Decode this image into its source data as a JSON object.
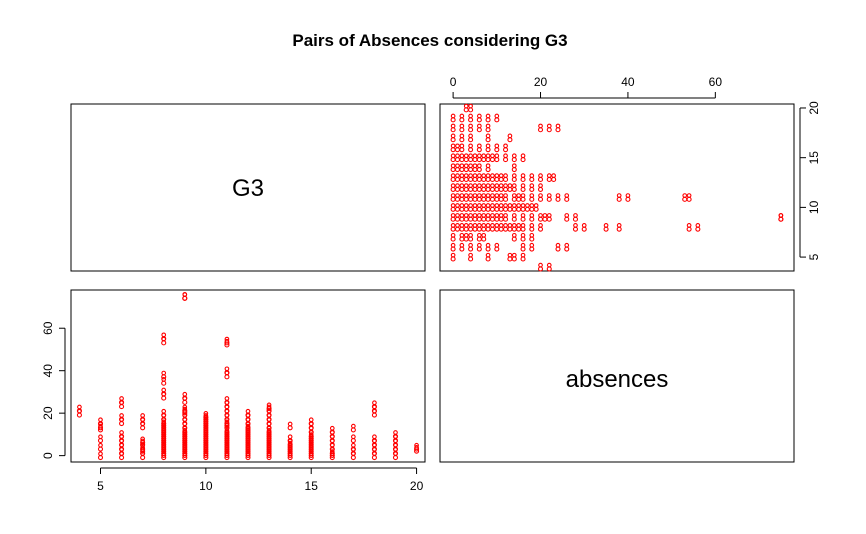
{
  "chart_data": {
    "type": "scatter",
    "title": "Pairs of Absences considering G3",
    "variables": [
      "G3",
      "absences"
    ],
    "point_color": "#ff0000",
    "point_symbol": "8",
    "axes": {
      "G3": {
        "range": [
          3.6,
          20.4
        ],
        "ticks": [
          5,
          10,
          15,
          20
        ]
      },
      "absences": {
        "range": [
          -3,
          78
        ],
        "ticks": [
          0,
          20,
          40,
          60
        ]
      }
    },
    "points": [
      [
        4,
        20
      ],
      [
        4,
        22
      ],
      [
        5,
        0
      ],
      [
        5,
        4
      ],
      [
        5,
        8
      ],
      [
        5,
        13
      ],
      [
        5,
        14
      ],
      [
        5,
        16
      ],
      [
        6,
        0
      ],
      [
        6,
        2
      ],
      [
        6,
        4
      ],
      [
        6,
        6
      ],
      [
        6,
        8
      ],
      [
        6,
        10
      ],
      [
        6,
        16
      ],
      [
        6,
        18
      ],
      [
        6,
        24
      ],
      [
        6,
        26
      ],
      [
        7,
        0
      ],
      [
        7,
        2
      ],
      [
        7,
        3
      ],
      [
        7,
        4
      ],
      [
        7,
        6
      ],
      [
        7,
        7
      ],
      [
        7,
        14
      ],
      [
        7,
        16
      ],
      [
        7,
        18
      ],
      [
        8,
        0
      ],
      [
        8,
        1
      ],
      [
        8,
        2
      ],
      [
        8,
        3
      ],
      [
        8,
        4
      ],
      [
        8,
        5
      ],
      [
        8,
        6
      ],
      [
        8,
        7
      ],
      [
        8,
        8
      ],
      [
        8,
        9
      ],
      [
        8,
        10
      ],
      [
        8,
        11
      ],
      [
        8,
        12
      ],
      [
        8,
        13
      ],
      [
        8,
        14
      ],
      [
        8,
        15
      ],
      [
        8,
        16
      ],
      [
        8,
        18
      ],
      [
        8,
        20
      ],
      [
        8,
        28
      ],
      [
        8,
        30
      ],
      [
        8,
        35
      ],
      [
        8,
        38
      ],
      [
        8,
        54
      ],
      [
        8,
        56
      ],
      [
        9,
        0
      ],
      [
        9,
        1
      ],
      [
        9,
        2
      ],
      [
        9,
        3
      ],
      [
        9,
        4
      ],
      [
        9,
        5
      ],
      [
        9,
        6
      ],
      [
        9,
        7
      ],
      [
        9,
        8
      ],
      [
        9,
        9
      ],
      [
        9,
        10
      ],
      [
        9,
        11
      ],
      [
        9,
        12
      ],
      [
        9,
        14
      ],
      [
        9,
        16
      ],
      [
        9,
        18
      ],
      [
        9,
        20
      ],
      [
        9,
        21
      ],
      [
        9,
        22
      ],
      [
        9,
        26
      ],
      [
        9,
        28
      ],
      [
        9,
        75
      ],
      [
        9,
        75
      ],
      [
        10,
        0
      ],
      [
        10,
        1
      ],
      [
        10,
        2
      ],
      [
        10,
        3
      ],
      [
        10,
        4
      ],
      [
        10,
        5
      ],
      [
        10,
        6
      ],
      [
        10,
        7
      ],
      [
        10,
        8
      ],
      [
        10,
        9
      ],
      [
        10,
        10
      ],
      [
        10,
        11
      ],
      [
        10,
        12
      ],
      [
        10,
        13
      ],
      [
        10,
        14
      ],
      [
        10,
        15
      ],
      [
        10,
        16
      ],
      [
        10,
        17
      ],
      [
        10,
        18
      ],
      [
        10,
        19
      ],
      [
        11,
        0
      ],
      [
        11,
        1
      ],
      [
        11,
        2
      ],
      [
        11,
        3
      ],
      [
        11,
        4
      ],
      [
        11,
        5
      ],
      [
        11,
        6
      ],
      [
        11,
        7
      ],
      [
        11,
        8
      ],
      [
        11,
        9
      ],
      [
        11,
        10
      ],
      [
        11,
        11
      ],
      [
        11,
        12
      ],
      [
        11,
        14
      ],
      [
        11,
        15
      ],
      [
        11,
        16
      ],
      [
        11,
        18
      ],
      [
        11,
        20
      ],
      [
        11,
        22
      ],
      [
        11,
        24
      ],
      [
        11,
        26
      ],
      [
        11,
        38
      ],
      [
        11,
        40
      ],
      [
        11,
        53
      ],
      [
        11,
        54
      ],
      [
        12,
        0
      ],
      [
        12,
        1
      ],
      [
        12,
        2
      ],
      [
        12,
        3
      ],
      [
        12,
        4
      ],
      [
        12,
        5
      ],
      [
        12,
        6
      ],
      [
        12,
        7
      ],
      [
        12,
        8
      ],
      [
        12,
        9
      ],
      [
        12,
        10
      ],
      [
        12,
        11
      ],
      [
        12,
        12
      ],
      [
        12,
        13
      ],
      [
        12,
        14
      ],
      [
        12,
        16
      ],
      [
        12,
        18
      ],
      [
        12,
        20
      ],
      [
        13,
        0
      ],
      [
        13,
        1
      ],
      [
        13,
        2
      ],
      [
        13,
        3
      ],
      [
        13,
        4
      ],
      [
        13,
        5
      ],
      [
        13,
        6
      ],
      [
        13,
        7
      ],
      [
        13,
        8
      ],
      [
        13,
        9
      ],
      [
        13,
        10
      ],
      [
        13,
        11
      ],
      [
        13,
        12
      ],
      [
        13,
        14
      ],
      [
        13,
        16
      ],
      [
        13,
        18
      ],
      [
        13,
        20
      ],
      [
        13,
        22
      ],
      [
        13,
        23
      ],
      [
        14,
        0
      ],
      [
        14,
        1
      ],
      [
        14,
        2
      ],
      [
        14,
        3
      ],
      [
        14,
        4
      ],
      [
        14,
        5
      ],
      [
        14,
        6
      ],
      [
        14,
        8
      ],
      [
        14,
        14
      ],
      [
        15,
        0
      ],
      [
        15,
        1
      ],
      [
        15,
        2
      ],
      [
        15,
        3
      ],
      [
        15,
        4
      ],
      [
        15,
        5
      ],
      [
        15,
        6
      ],
      [
        15,
        7
      ],
      [
        15,
        8
      ],
      [
        15,
        9
      ],
      [
        15,
        10
      ],
      [
        15,
        12
      ],
      [
        15,
        14
      ],
      [
        15,
        16
      ],
      [
        16,
        0
      ],
      [
        16,
        1
      ],
      [
        16,
        2
      ],
      [
        16,
        4
      ],
      [
        16,
        6
      ],
      [
        16,
        8
      ],
      [
        16,
        10
      ],
      [
        16,
        12
      ],
      [
        17,
        0
      ],
      [
        17,
        2
      ],
      [
        17,
        4
      ],
      [
        17,
        8
      ],
      [
        17,
        13
      ],
      [
        18,
        0
      ],
      [
        18,
        2
      ],
      [
        18,
        4
      ],
      [
        18,
        6
      ],
      [
        18,
        8
      ],
      [
        18,
        20
      ],
      [
        18,
        22
      ],
      [
        18,
        24
      ],
      [
        19,
        0
      ],
      [
        19,
        2
      ],
      [
        19,
        4
      ],
      [
        19,
        6
      ],
      [
        19,
        8
      ],
      [
        19,
        10
      ],
      [
        20,
        3
      ],
      [
        20,
        4
      ]
    ]
  }
}
